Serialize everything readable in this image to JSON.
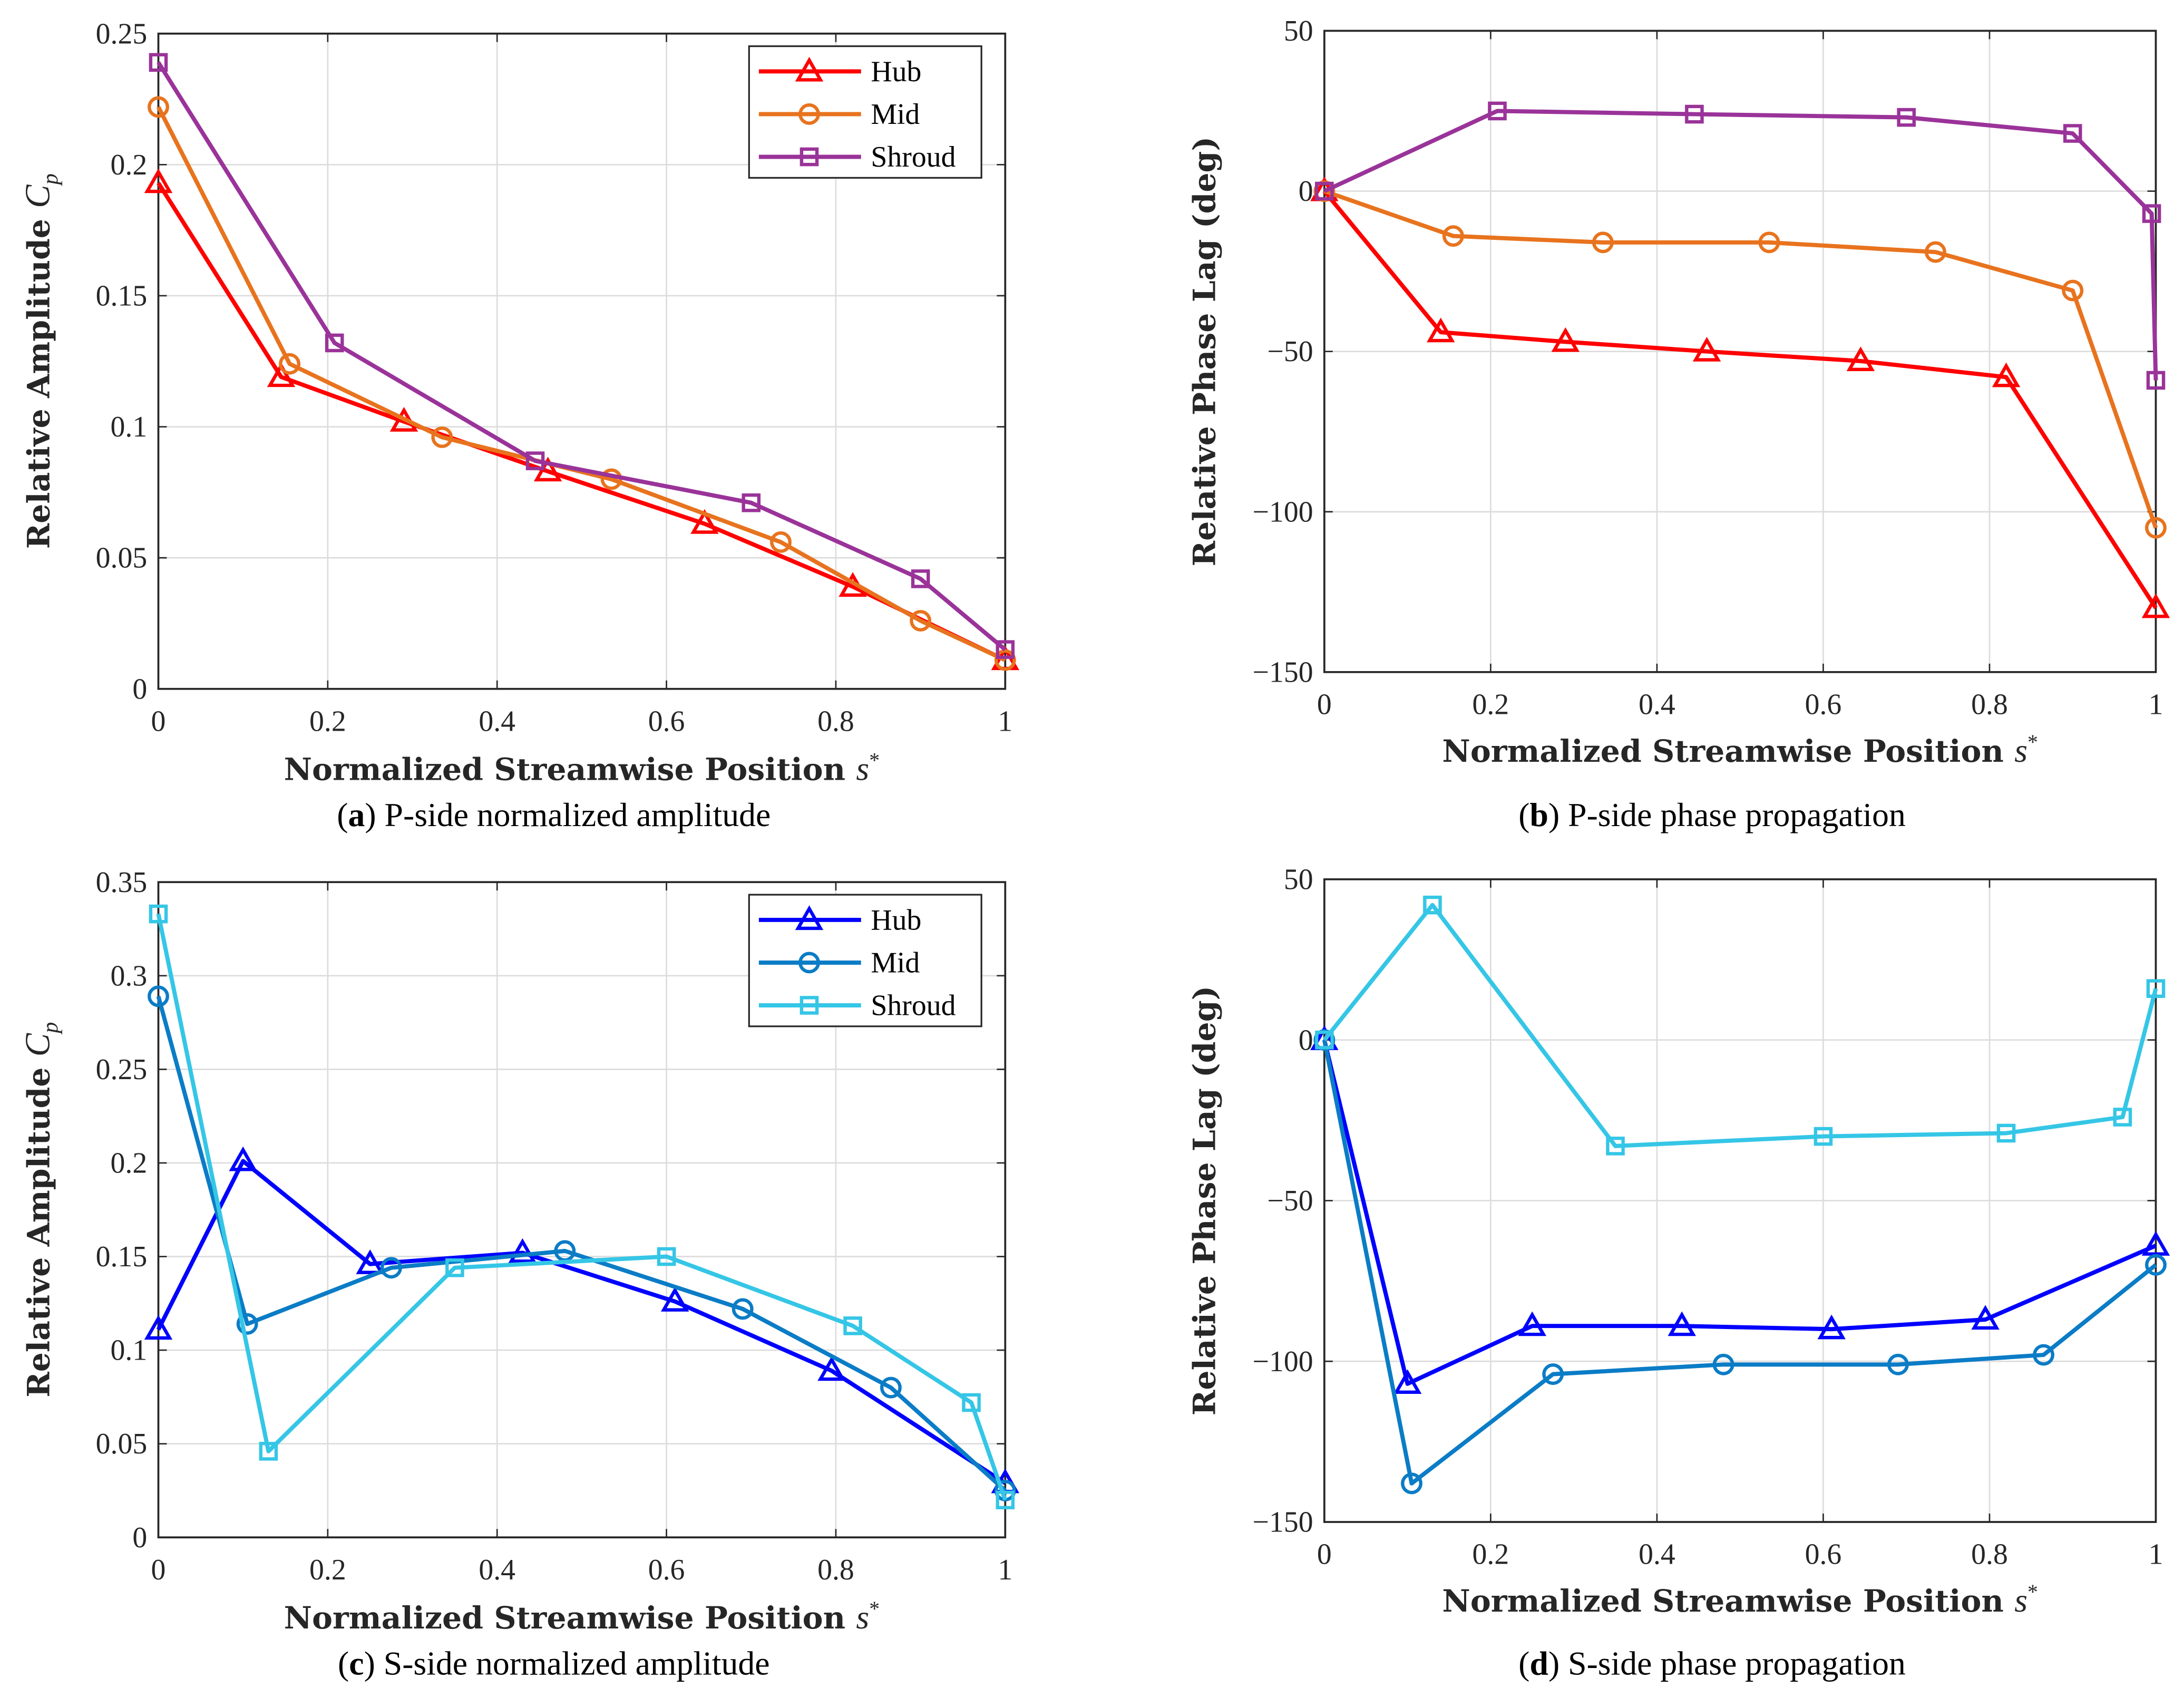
{
  "chart_data": [
    {
      "id": "a",
      "type": "line",
      "caption_label": "a",
      "caption_text": "P-side normalized amplitude",
      "xlabel": "Normalized Streamwise Position",
      "xlabel_symbol": "s",
      "xlabel_sup": "*",
      "ylabel": "Relative Amplitude",
      "ylabel_symbol": "C",
      "ylabel_sub": "p",
      "xlim": [
        0,
        1
      ],
      "ylim": [
        0,
        0.25
      ],
      "xticks": [
        0,
        0.2,
        0.4,
        0.6,
        0.8,
        1
      ],
      "xtick_labels": [
        "0",
        "0.2",
        "0.4",
        "0.6",
        "0.8",
        "1"
      ],
      "yticks": [
        0,
        0.05,
        0.1,
        0.15,
        0.2,
        0.25
      ],
      "ytick_labels": [
        "0",
        "0.05",
        "0.1",
        "0.15",
        "0.2",
        "0.25"
      ],
      "grid": true,
      "legend": "top-right",
      "series": [
        {
          "name": "Hub",
          "marker": "triangle",
          "color": "#ff0000",
          "x": [
            0,
            0.145,
            0.29,
            0.46,
            0.645,
            0.82,
            1
          ],
          "y": [
            0.193,
            0.119,
            0.102,
            0.083,
            0.063,
            0.039,
            0.011
          ]
        },
        {
          "name": "Mid",
          "marker": "circle",
          "color": "#e8731e",
          "x": [
            0,
            0.155,
            0.335,
            0.535,
            0.735,
            0.9,
            1
          ],
          "y": [
            0.222,
            0.124,
            0.096,
            0.08,
            0.056,
            0.026,
            0.011
          ]
        },
        {
          "name": "Shroud",
          "marker": "square",
          "color": "#9a3399",
          "x": [
            0,
            0.208,
            0.445,
            0.7,
            0.9,
            1
          ],
          "y": [
            0.239,
            0.132,
            0.087,
            0.071,
            0.042,
            0.015
          ]
        }
      ]
    },
    {
      "id": "b",
      "type": "line",
      "caption_label": "b",
      "caption_text": "P-side phase propagation",
      "xlabel": "Normalized Streamwise Position",
      "xlabel_symbol": "s",
      "xlabel_sup": "*",
      "ylabel": "Relative Phase Lag (deg)",
      "ylabel_symbol": "",
      "ylabel_sub": "",
      "xlim": [
        0,
        1
      ],
      "ylim": [
        -150,
        50
      ],
      "xticks": [
        0,
        0.2,
        0.4,
        0.6,
        0.8,
        1
      ],
      "xtick_labels": [
        "0",
        "0.2",
        "0.4",
        "0.6",
        "0.8",
        "1"
      ],
      "yticks": [
        -150,
        -100,
        -50,
        0,
        50
      ],
      "ytick_labels": [
        "−150",
        "−100",
        "−50",
        "0",
        "50"
      ],
      "grid": true,
      "legend": "none",
      "series": [
        {
          "name": "Hub",
          "marker": "triangle",
          "color": "#ff0000",
          "x": [
            0,
            0.14,
            0.29,
            0.46,
            0.645,
            0.82,
            1
          ],
          "y": [
            0,
            -44,
            -47,
            -50,
            -53,
            -58,
            -130
          ]
        },
        {
          "name": "Mid",
          "marker": "circle",
          "color": "#e8731e",
          "x": [
            0,
            0.155,
            0.335,
            0.535,
            0.735,
            0.9,
            1
          ],
          "y": [
            0,
            -14,
            -16,
            -16,
            -19,
            -31,
            -105
          ]
        },
        {
          "name": "Shroud",
          "marker": "square",
          "color": "#9a3399",
          "x": [
            0,
            0.208,
            0.445,
            0.7,
            0.9,
            0.995,
            1
          ],
          "y": [
            0,
            25,
            24,
            23,
            18,
            -7,
            -59
          ]
        }
      ]
    },
    {
      "id": "c",
      "type": "line",
      "caption_label": "c",
      "caption_text": "S-side normalized amplitude",
      "xlabel": "Normalized Streamwise Position",
      "xlabel_symbol": "s",
      "xlabel_sup": "*",
      "ylabel": "Relative Amplitude",
      "ylabel_symbol": "C",
      "ylabel_sub": "p",
      "xlim": [
        0,
        1
      ],
      "ylim": [
        0,
        0.35
      ],
      "xticks": [
        0,
        0.2,
        0.4,
        0.6,
        0.8,
        1
      ],
      "xtick_labels": [
        "0",
        "0.2",
        "0.4",
        "0.6",
        "0.8",
        "1"
      ],
      "yticks": [
        0,
        0.05,
        0.1,
        0.15,
        0.2,
        0.25,
        0.3,
        0.35
      ],
      "ytick_labels": [
        "0",
        "0.05",
        "0.1",
        "0.15",
        "0.2",
        "0.25",
        "0.3",
        "0.35"
      ],
      "grid": true,
      "legend": "top-right",
      "series": [
        {
          "name": "Hub",
          "marker": "triangle",
          "color": "#0000ff",
          "x": [
            0,
            0.1,
            0.25,
            0.43,
            0.61,
            0.795,
            1
          ],
          "y": [
            0.111,
            0.201,
            0.146,
            0.152,
            0.126,
            0.089,
            0.029
          ]
        },
        {
          "name": "Mid",
          "marker": "circle",
          "color": "#0b7cc6",
          "x": [
            0,
            0.105,
            0.275,
            0.48,
            0.69,
            0.865,
            1
          ],
          "y": [
            0.289,
            0.114,
            0.144,
            0.153,
            0.122,
            0.08,
            0.025
          ]
        },
        {
          "name": "Shroud",
          "marker": "square",
          "color": "#35c6e6",
          "x": [
            0,
            0.13,
            0.35,
            0.6,
            0.82,
            0.96,
            1
          ],
          "y": [
            0.333,
            0.046,
            0.144,
            0.15,
            0.113,
            0.072,
            0.02
          ]
        }
      ]
    },
    {
      "id": "d",
      "type": "line",
      "caption_label": "d",
      "caption_text": "S-side phase propagation",
      "xlabel": "Normalized Streamwise Position",
      "xlabel_symbol": "s",
      "xlabel_sup": "*",
      "ylabel": "Relative Phase Lag (deg)",
      "ylabel_symbol": "",
      "ylabel_sub": "",
      "xlim": [
        0,
        1
      ],
      "ylim": [
        -150,
        50
      ],
      "xticks": [
        0,
        0.2,
        0.4,
        0.6,
        0.8,
        1
      ],
      "xtick_labels": [
        "0",
        "0.2",
        "0.4",
        "0.6",
        "0.8",
        "1"
      ],
      "yticks": [
        -150,
        -100,
        -50,
        0,
        50
      ],
      "ytick_labels": [
        "−150",
        "−100",
        "−50",
        "0",
        "50"
      ],
      "grid": true,
      "legend": "none",
      "series": [
        {
          "name": "Hub",
          "marker": "triangle",
          "color": "#0000ff",
          "x": [
            0,
            0.1,
            0.25,
            0.43,
            0.61,
            0.795,
            1
          ],
          "y": [
            0,
            -107,
            -89,
            -89,
            -90,
            -87,
            -64
          ]
        },
        {
          "name": "Mid",
          "marker": "circle",
          "color": "#0b7cc6",
          "x": [
            0,
            0.105,
            0.275,
            0.48,
            0.69,
            0.865,
            1
          ],
          "y": [
            0,
            -138,
            -104,
            -101,
            -101,
            -98,
            -70
          ]
        },
        {
          "name": "Shroud",
          "marker": "square",
          "color": "#35c6e6",
          "x": [
            0,
            0.13,
            0.35,
            0.6,
            0.82,
            0.96,
            1
          ],
          "y": [
            0,
            42,
            -33,
            -30,
            -29,
            -24,
            16
          ]
        }
      ]
    }
  ]
}
